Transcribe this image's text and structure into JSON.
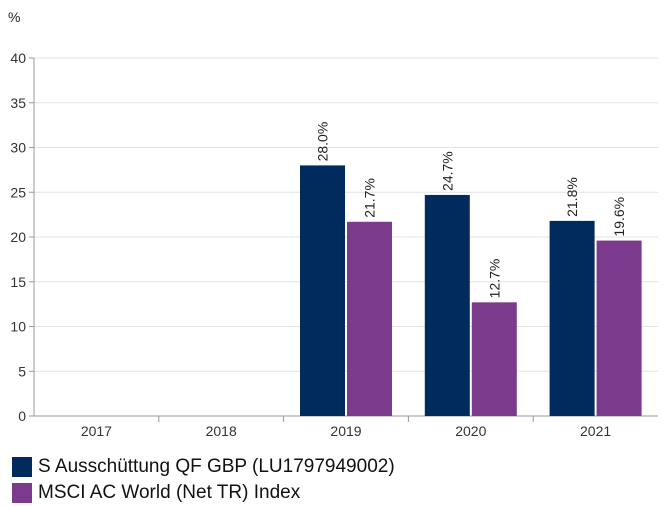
{
  "chart_data": {
    "type": "bar",
    "unit_label": "%",
    "categories": [
      "2017",
      "2018",
      "2019",
      "2020",
      "2021"
    ],
    "series": [
      {
        "name": "S Ausschüttung QF GBP (LU1797949002)",
        "color": "#002b5c",
        "values": [
          null,
          null,
          28.0,
          24.7,
          21.8
        ],
        "labels": [
          "",
          "",
          "28.0%",
          "24.7%",
          "21.8%"
        ]
      },
      {
        "name": "MSCI AC World (Net TR) Index",
        "color": "#7b3a8c",
        "values": [
          null,
          null,
          21.7,
          12.7,
          19.6
        ],
        "labels": [
          "",
          "",
          "21.7%",
          "12.7%",
          "19.6%"
        ]
      }
    ],
    "ylim": [
      0,
      40
    ],
    "yticks": [
      0,
      5,
      10,
      15,
      20,
      25,
      30,
      35,
      40
    ],
    "grid": true,
    "legend": "bottom-left"
  }
}
